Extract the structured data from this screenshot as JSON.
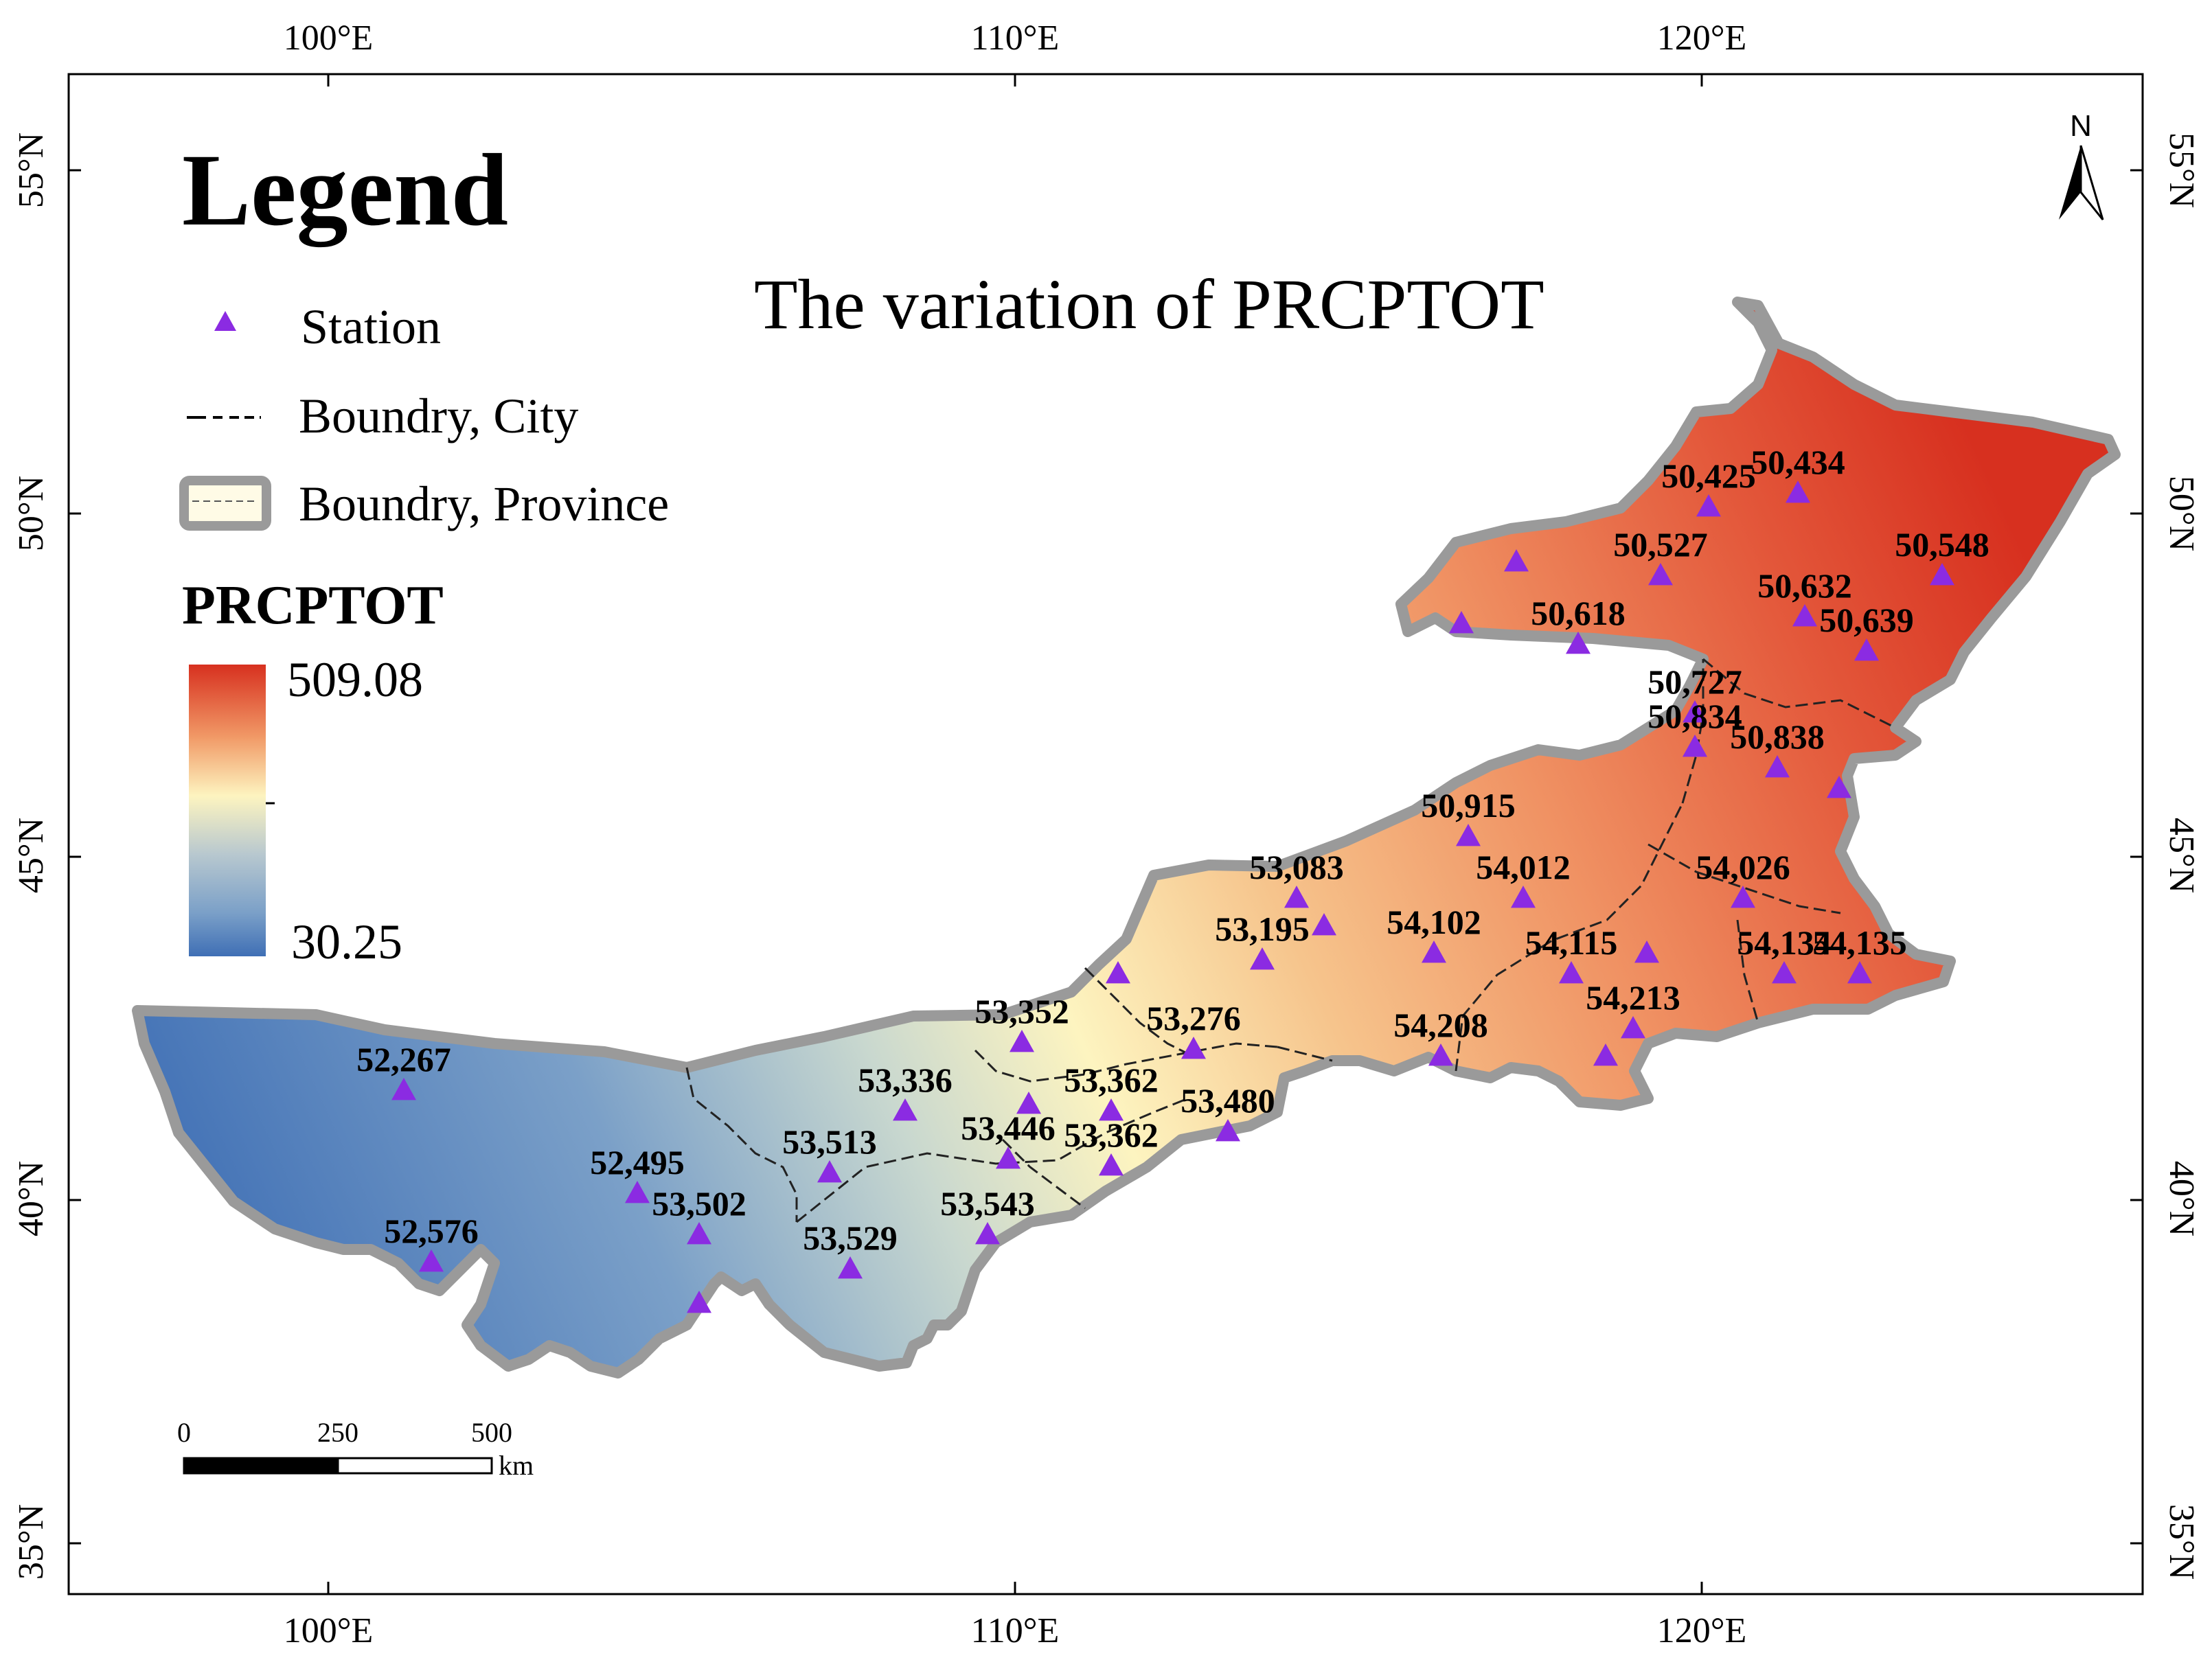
{
  "title": "The variation of PRCPTOT",
  "legend": {
    "heading": "Legend",
    "station_label": "Station",
    "city_boundary_label": "Boundry, City",
    "province_boundary_label": "Boundry, Province",
    "field_title": "PRCPTOT",
    "max_value": "509.08",
    "min_value": "30.25"
  },
  "colors": {
    "station": "#8B2BE2",
    "ramp_high": "#d7301f",
    "ramp_mid_high": "#f4a460",
    "ramp_mid": "#ffffbf",
    "ramp_mid_low": "#91b3cc",
    "ramp_low": "#3f6fb5",
    "province_border": "#9a9a9a"
  },
  "axes": {
    "longitude_ticks": [
      "100°E",
      "110°E",
      "120°E"
    ],
    "latitude_ticks": [
      "55°N",
      "50°N",
      "45°N",
      "40°N",
      "35°N"
    ]
  },
  "north_arrow": "N",
  "scale_bar": {
    "ticks": [
      "0",
      "250",
      "500"
    ],
    "unit": "km"
  },
  "stations": [
    {
      "label": "50,434",
      "lon": 121.4,
      "lat": 50.3
    },
    {
      "label": "50,425",
      "lon": 120.1,
      "lat": 50.1
    },
    {
      "label": "50,527",
      "lon": 119.4,
      "lat": 49.1
    },
    {
      "label": "50,548",
      "lon": 123.5,
      "lat": 49.1
    },
    {
      "label": "50,632",
      "lon": 121.5,
      "lat": 48.5
    },
    {
      "label": "50,618",
      "lon": 118.2,
      "lat": 48.1
    },
    {
      "label": "50,639",
      "lon": 122.4,
      "lat": 48.0
    },
    {
      "label": "50,727",
      "lon": 119.9,
      "lat": 47.1
    },
    {
      "label": "50,838",
      "lon": 121.1,
      "lat": 46.3
    },
    {
      "label": "50,915",
      "lon": 116.6,
      "lat": 45.3
    },
    {
      "label": "50,834",
      "lon": 119.9,
      "lat": 46.6
    },
    {
      "label": "54,012",
      "lon": 117.4,
      "lat": 44.4
    },
    {
      "label": "53,083",
      "lon": 114.1,
      "lat": 44.4
    },
    {
      "label": "54,026",
      "lon": 120.6,
      "lat": 44.4
    },
    {
      "label": "53,195",
      "lon": 113.6,
      "lat": 43.5
    },
    {
      "label": "54,102",
      "lon": 116.1,
      "lat": 43.6
    },
    {
      "label": "54,115",
      "lon": 118.1,
      "lat": 43.3
    },
    {
      "label": "54,134",
      "lon": 121.2,
      "lat": 43.3
    },
    {
      "label": "54,135",
      "lon": 122.3,
      "lat": 43.3
    },
    {
      "label": "54,213",
      "lon": 119.0,
      "lat": 42.5
    },
    {
      "label": "53,276",
      "lon": 112.6,
      "lat": 42.2
    },
    {
      "label": "54,208",
      "lon": 116.2,
      "lat": 42.1
    },
    {
      "label": "52,267",
      "lon": 101.1,
      "lat": 41.6
    },
    {
      "label": "53,336",
      "lon": 108.4,
      "lat": 41.3
    },
    {
      "label": "53,352",
      "lon": 110.1,
      "lat": 42.3
    },
    {
      "label": "53,362",
      "lon": 111.4,
      "lat": 41.3
    },
    {
      "label": "53,446",
      "lon": 109.9,
      "lat": 40.6
    },
    {
      "label": "53,362",
      "lon": 111.4,
      "lat": 40.5
    },
    {
      "label": "53,480",
      "lon": 113.1,
      "lat": 41.0
    },
    {
      "label": "53,513",
      "lon": 107.3,
      "lat": 40.4
    },
    {
      "label": "52,495",
      "lon": 104.5,
      "lat": 40.1
    },
    {
      "label": "53,502",
      "lon": 105.4,
      "lat": 39.5
    },
    {
      "label": "53,543",
      "lon": 109.6,
      "lat": 39.5
    },
    {
      "label": "53,529",
      "lon": 107.6,
      "lat": 39.0
    },
    {
      "label": "52,576",
      "lon": 101.5,
      "lat": 39.1
    }
  ],
  "extra_stations": [
    {
      "lon": 117.3,
      "lat": 49.3
    },
    {
      "lon": 116.5,
      "lat": 48.4
    },
    {
      "lon": 114.5,
      "lat": 44.0
    },
    {
      "lon": 111.5,
      "lat": 43.3
    },
    {
      "lon": 118.6,
      "lat": 42.1
    },
    {
      "lon": 110.2,
      "lat": 41.4
    },
    {
      "lon": 105.4,
      "lat": 38.5
    },
    {
      "lon": 119.2,
      "lat": 43.6
    },
    {
      "lon": 122.0,
      "lat": 46.0
    }
  ]
}
